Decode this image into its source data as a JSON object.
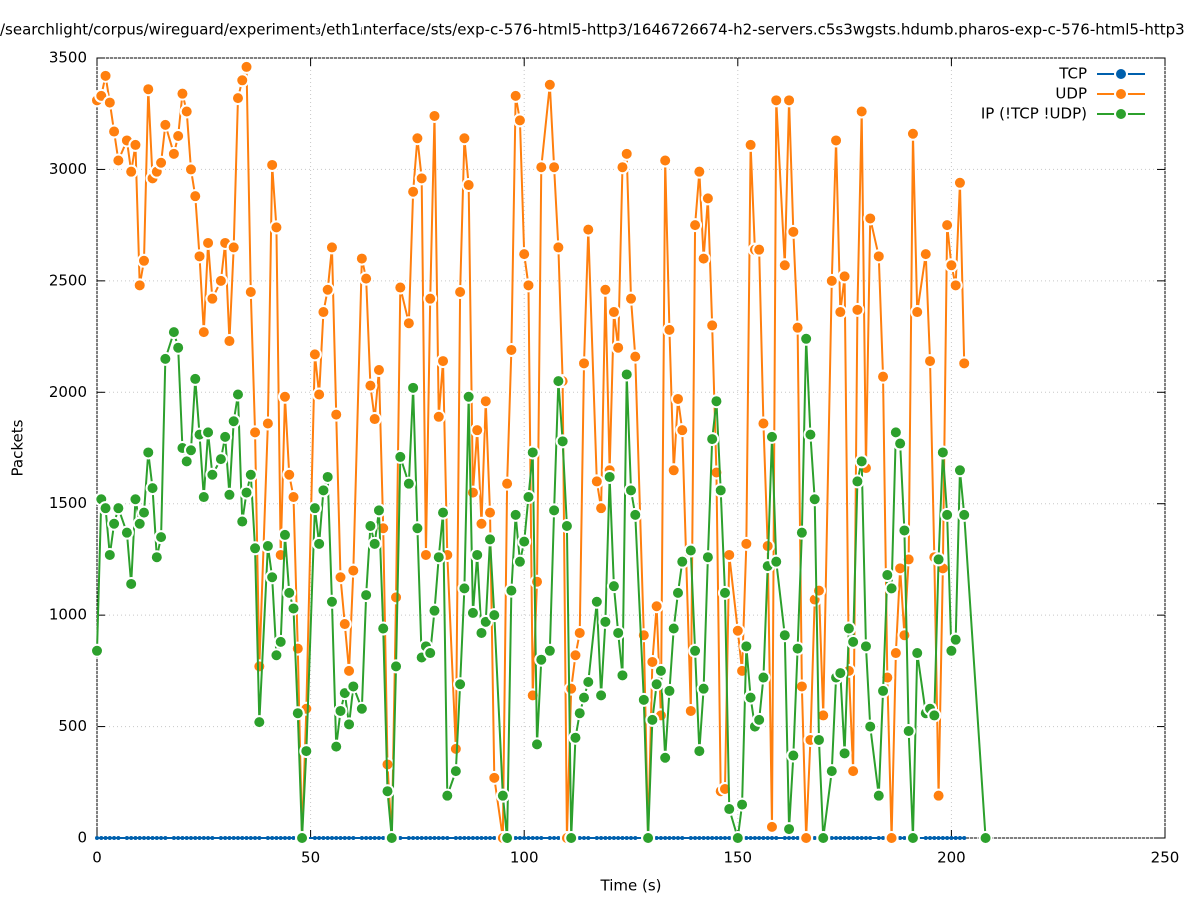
{
  "chart_data": {
    "type": "line",
    "title": "/searchlight/corpus/wireguard/experiment₃/eth1ᵢnterface/sts/exp-c-576-html5-http3/1646726674-h2-servers.c5s3wgsts.hdumb.pharos-exp-c-576-html5-http3",
    "x_label": "Time (s)",
    "y_label": "Packets",
    "xlim": [
      0,
      250
    ],
    "xticks": [
      0,
      50,
      100,
      150,
      200,
      250
    ],
    "ylim": [
      0,
      3500
    ],
    "yticks": [
      0,
      500,
      1000,
      1500,
      2000,
      2500,
      3000,
      3500
    ],
    "grid": true,
    "legend": "top-right",
    "x": [
      0,
      1,
      2,
      3,
      4,
      5,
      7,
      8,
      9,
      10,
      11,
      12,
      13,
      14,
      15,
      16,
      18,
      19,
      20,
      21,
      22,
      23,
      24,
      25,
      26,
      27,
      29,
      30,
      31,
      32,
      33,
      34,
      35,
      36,
      37,
      38,
      40,
      41,
      42,
      43,
      44,
      45,
      46,
      47,
      48,
      49,
      51,
      52,
      53,
      54,
      55,
      56,
      57,
      58,
      59,
      60,
      62,
      63,
      64,
      65,
      66,
      67,
      68,
      69,
      70,
      71,
      73,
      74,
      75,
      76,
      77,
      78,
      79,
      80,
      81,
      82,
      84,
      85,
      86,
      87,
      88,
      89,
      90,
      91,
      92,
      93,
      95,
      96,
      97,
      98,
      99,
      100,
      101,
      102,
      103,
      104,
      106,
      107,
      108,
      109,
      110,
      111,
      112,
      113,
      114,
      115,
      117,
      118,
      119,
      120,
      121,
      122,
      123,
      124,
      125,
      126,
      128,
      129,
      130,
      131,
      132,
      133,
      134,
      135,
      136,
      137,
      139,
      140,
      141,
      142,
      143,
      144,
      145,
      146,
      147,
      148,
      150,
      151,
      152,
      153,
      154,
      155,
      156,
      157,
      158,
      159,
      161,
      162,
      163,
      164,
      165,
      166,
      167,
      168,
      169,
      170,
      172,
      173,
      174,
      175,
      176,
      177,
      178,
      179,
      180,
      181,
      183,
      184,
      185,
      186,
      187,
      188,
      189,
      190,
      191,
      192,
      194,
      195,
      196,
      197,
      198,
      199,
      200,
      201,
      202,
      203,
      208
    ],
    "series": [
      {
        "name": "TCP",
        "color": "#0060ad",
        "values": [
          0,
          0,
          0,
          0,
          0,
          0,
          0,
          0,
          0,
          0,
          0,
          0,
          0,
          0,
          0,
          0,
          0,
          0,
          0,
          0,
          0,
          0,
          0,
          0,
          0,
          0,
          0,
          0,
          0,
          0,
          0,
          0,
          0,
          0,
          0,
          0,
          0,
          0,
          0,
          0,
          0,
          0,
          0,
          0,
          0,
          0,
          0,
          0,
          0,
          0,
          0,
          0,
          0,
          0,
          0,
          0,
          0,
          0,
          0,
          0,
          0,
          0,
          0,
          0,
          0,
          0,
          0,
          0,
          0,
          0,
          0,
          0,
          0,
          0,
          0,
          0,
          0,
          0,
          0,
          0,
          0,
          0,
          0,
          0,
          0,
          0,
          0,
          0,
          0,
          0,
          0,
          0,
          0,
          0,
          0,
          0,
          0,
          0,
          0,
          0,
          0,
          0,
          0,
          0,
          0,
          0,
          0,
          0,
          0,
          0,
          0,
          0,
          0,
          0,
          0,
          0,
          0,
          0,
          0,
          0,
          0,
          0,
          0,
          0,
          0,
          0,
          0,
          0,
          0,
          0,
          0,
          0,
          0,
          0,
          0,
          0,
          0,
          0,
          0,
          0,
          0,
          0,
          0,
          0,
          0,
          0,
          0,
          0,
          0,
          0,
          0,
          0,
          0,
          0,
          0,
          0,
          0,
          0,
          0,
          0,
          0,
          0,
          0,
          0,
          0,
          0,
          0,
          0,
          0,
          0,
          0,
          0,
          0,
          0,
          0,
          0,
          0,
          0,
          0,
          0,
          0,
          0,
          0,
          0,
          0,
          0,
          null
        ]
      },
      {
        "name": "UDP",
        "color": "#ff7f0e",
        "values": [
          3310,
          3330,
          3420,
          3300,
          3170,
          3040,
          3130,
          2990,
          3110,
          2480,
          2590,
          3360,
          2960,
          2990,
          3030,
          3200,
          3070,
          3150,
          3340,
          3260,
          3000,
          2880,
          2610,
          2270,
          2670,
          2420,
          2500,
          2670,
          2230,
          2650,
          3320,
          3400,
          3460,
          2450,
          1820,
          770,
          1860,
          3020,
          2740,
          1270,
          1980,
          1630,
          1530,
          850,
          0,
          580,
          2170,
          1990,
          2360,
          2460,
          2650,
          1900,
          1170,
          960,
          750,
          1200,
          2600,
          2510,
          2030,
          1880,
          2100,
          1390,
          330,
          0,
          1080,
          2470,
          2310,
          2900,
          3140,
          2960,
          1270,
          2420,
          3240,
          1890,
          2140,
          1270,
          400,
          2450,
          3140,
          2930,
          1550,
          1830,
          1410,
          1960,
          1460,
          270,
          0,
          1590,
          2190,
          3330,
          3220,
          2620,
          2480,
          640,
          1150,
          3010,
          3380,
          3010,
          2650,
          2050,
          0,
          670,
          820,
          920,
          2130,
          2730,
          1600,
          1480,
          2460,
          1650,
          2360,
          2200,
          3010,
          3070,
          2420,
          2160,
          910,
          0,
          790,
          1040,
          550,
          3040,
          2280,
          1650,
          1970,
          1830,
          570,
          2750,
          2990,
          2600,
          2870,
          2300,
          1640,
          210,
          220,
          1270,
          930,
          750,
          1320,
          3110,
          2640,
          2640,
          1860,
          1310,
          50,
          3310,
          2570,
          3310,
          2720,
          2290,
          680,
          0,
          440,
          1070,
          1110,
          550,
          2500,
          3130,
          2360,
          2520,
          750,
          300,
          2370,
          3260,
          1660,
          2780,
          2610,
          2070,
          720,
          0,
          830,
          1210,
          910,
          1250,
          3160,
          2360,
          2620,
          2140,
          1260,
          190,
          1210,
          2750,
          2570,
          2480,
          2940,
          2130,
          null
        ]
      },
      {
        "name": "IP (!TCP  !UDP)",
        "color": "#2ca02c",
        "values": [
          840,
          1520,
          1480,
          1270,
          1410,
          1480,
          1370,
          1140,
          1520,
          1410,
          1460,
          1730,
          1570,
          1260,
          1350,
          2150,
          2270,
          2200,
          1750,
          1690,
          1740,
          2060,
          1810,
          1530,
          1820,
          1630,
          1700,
          1800,
          1540,
          1870,
          1990,
          1420,
          1550,
          1630,
          1300,
          520,
          1310,
          1170,
          820,
          880,
          1360,
          1100,
          1030,
          560,
          0,
          390,
          1480,
          1320,
          1560,
          1620,
          1060,
          410,
          570,
          650,
          510,
          680,
          580,
          1090,
          1400,
          1320,
          1470,
          940,
          210,
          0,
          770,
          1710,
          1590,
          2020,
          1390,
          810,
          860,
          830,
          1020,
          1260,
          1460,
          190,
          300,
          690,
          1120,
          1980,
          1010,
          1270,
          920,
          970,
          1340,
          1000,
          190,
          0,
          1110,
          1450,
          1240,
          1330,
          1530,
          1730,
          420,
          800,
          840,
          1470,
          2050,
          1780,
          1400,
          0,
          450,
          560,
          630,
          700,
          1060,
          640,
          970,
          1620,
          1130,
          920,
          730,
          2080,
          1560,
          1450,
          620,
          0,
          530,
          690,
          750,
          360,
          660,
          940,
          1100,
          1240,
          1290,
          840,
          390,
          670,
          1260,
          1790,
          1960,
          1560,
          1100,
          130,
          0,
          150,
          860,
          630,
          500,
          530,
          720,
          1220,
          1800,
          1240,
          910,
          40,
          370,
          850,
          1370,
          2240,
          1810,
          1520,
          440,
          0,
          300,
          720,
          740,
          380,
          940,
          880,
          1600,
          1690,
          860,
          500,
          190,
          660,
          1180,
          1120,
          1820,
          1770,
          1380,
          480,
          0,
          830,
          560,
          580,
          550,
          1250,
          1730,
          1450,
          840,
          890,
          1650,
          1450,
          0
        ]
      }
    ]
  }
}
